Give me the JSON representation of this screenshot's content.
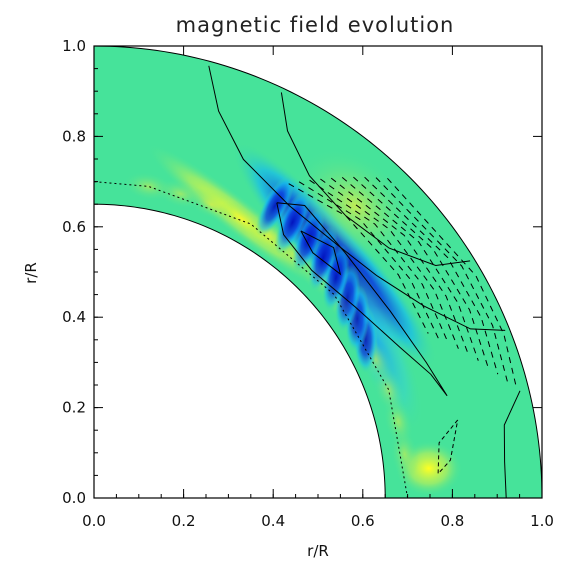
{
  "chart_data": {
    "type": "heatmap",
    "title": "magnetic field evolution",
    "xlabel": "r/R",
    "ylabel": "r/R",
    "xlim": [
      0.0,
      1.0
    ],
    "ylim": [
      0.0,
      1.0
    ],
    "x_ticks": [
      "0.0",
      "0.2",
      "0.4",
      "0.6",
      "0.8",
      "1.0"
    ],
    "y_ticks": [
      "0.0",
      "0.2",
      "0.4",
      "0.6",
      "0.8",
      "1.0"
    ],
    "domain": {
      "inner_radius": 0.65,
      "outer_radius": 1.0,
      "geometry": "quarter-annulus"
    },
    "colormap": {
      "background": "#46e39a",
      "negative_strong": "#0010c8",
      "negative_mid": "#00b8f2",
      "positive_mid": "#ffff33"
    },
    "field_features": [
      {
        "type": "negative",
        "r": 0.76,
        "theta_deg": 45,
        "intensity": 1.0
      },
      {
        "type": "negative",
        "r": 0.72,
        "theta_deg": 28,
        "intensity": 0.7
      },
      {
        "type": "positive",
        "r": 0.7,
        "theta_deg": 62,
        "intensity": 0.6
      },
      {
        "type": "positive",
        "r": 0.75,
        "theta_deg": 5,
        "intensity": 0.9
      },
      {
        "type": "positive",
        "r": 0.87,
        "theta_deg": 48,
        "intensity": 0.3
      }
    ]
  }
}
